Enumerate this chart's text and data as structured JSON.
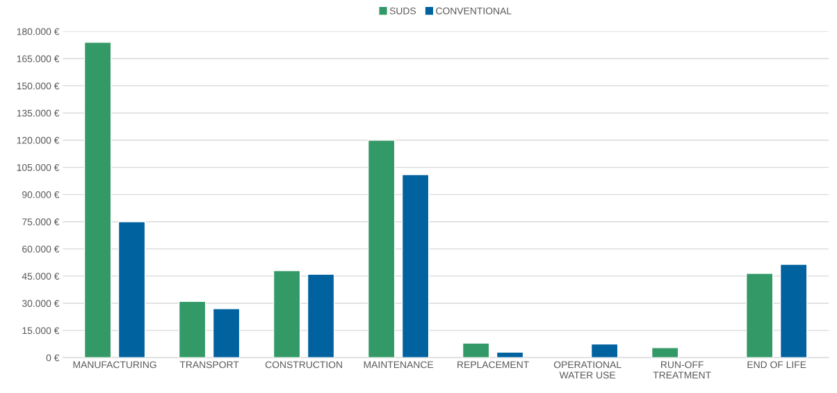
{
  "chart_data": {
    "type": "bar",
    "categories": [
      "MANUFACTURING",
      "TRANSPORT",
      "CONSTRUCTION",
      "MAINTENANCE",
      "REPLACEMENT",
      "OPERATIONAL\nWATER USE",
      "RUN-OFF\nTREATMENT",
      "END OF LIFE"
    ],
    "series": [
      {
        "name": "SUDS",
        "color": "#339966",
        "values": [
          174000,
          31000,
          48000,
          120000,
          8000,
          null,
          5500,
          46500
        ]
      },
      {
        "name": "CONVENTIONAL",
        "color": "#00629f",
        "values": [
          75000,
          27000,
          46000,
          101000,
          3000,
          7500,
          null,
          51500
        ]
      }
    ],
    "ylim": [
      0,
      180000
    ],
    "yticks": [
      {
        "value": 0,
        "label": "0 €"
      },
      {
        "value": 15000,
        "label": "15.000 €"
      },
      {
        "value": 30000,
        "label": "30.000 €"
      },
      {
        "value": 45000,
        "label": "45.000 €"
      },
      {
        "value": 60000,
        "label": "60.000 €"
      },
      {
        "value": 75000,
        "label": "75.000 €"
      },
      {
        "value": 90000,
        "label": "90.000 €"
      },
      {
        "value": 105000,
        "label": "105.000 €"
      },
      {
        "value": 120000,
        "label": "120.000 €"
      },
      {
        "value": 135000,
        "label": "135.000 €"
      },
      {
        "value": 150000,
        "label": "150.000 €"
      },
      {
        "value": 165000,
        "label": "165.000 €"
      },
      {
        "value": 180000,
        "label": "180.000 €"
      }
    ],
    "grid": "y",
    "legend": "top"
  }
}
